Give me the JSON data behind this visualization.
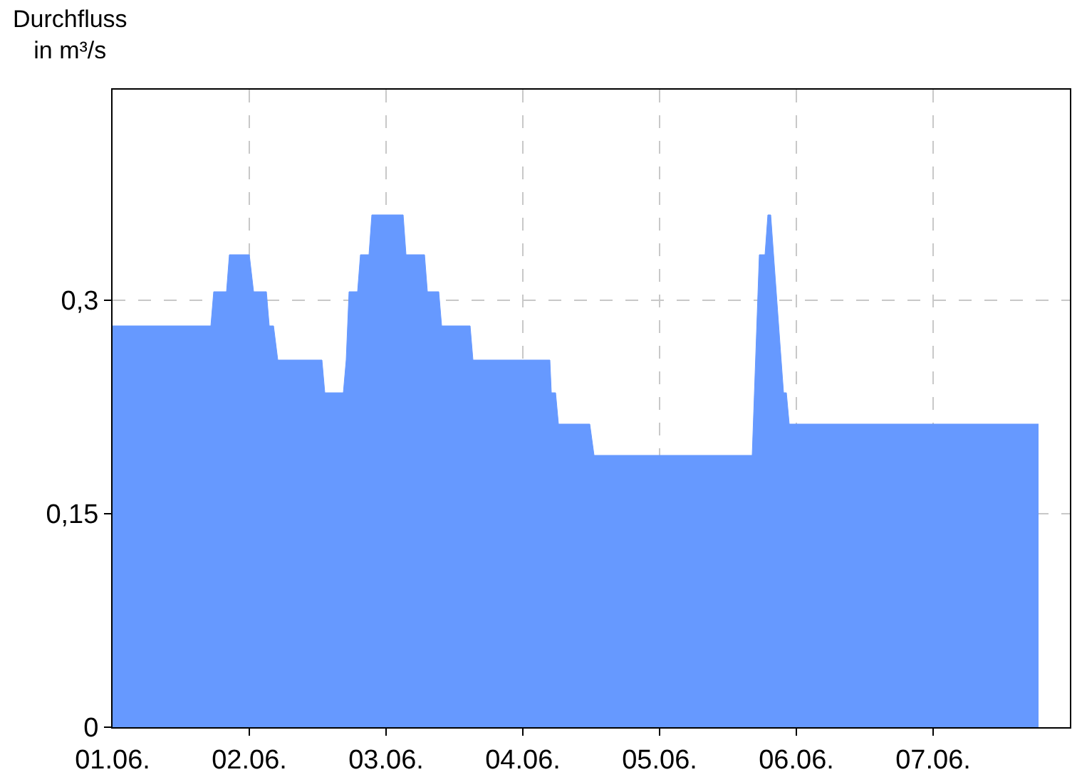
{
  "chart_data": {
    "type": "area",
    "ylabel": "Durchfluss\nin m³/s",
    "x": [
      "--06-01T00:00",
      "--06-01T17:15",
      "--06-01T17:45",
      "--06-01T20:00",
      "--06-01T20:30",
      "--06-02T00:00",
      "--06-02T00:45",
      "--06-02T03:00",
      "--06-02T03:30",
      "--06-02T04:15",
      "--06-02T05:00",
      "--06-02T12:45",
      "--06-02T13:15",
      "--06-02T16:30",
      "--06-02T17:00",
      "--06-02T17:30",
      "--06-02T18:00",
      "--06-02T19:00",
      "--06-02T19:30",
      "--06-02T21:00",
      "--06-02T21:30",
      "--06-03T03:00",
      "--06-03T03:30",
      "--06-03T06:45",
      "--06-03T07:15",
      "--06-03T09:15",
      "--06-03T09:45",
      "--06-03T14:45",
      "--06-03T15:15",
      "--06-04T04:45",
      "--06-04T05:00",
      "--06-04T05:45",
      "--06-04T06:15",
      "--06-04T11:45",
      "--06-04T12:30",
      "--06-05T16:15",
      "--06-05T17:30",
      "--06-05T18:30",
      "--06-05T19:00",
      "--06-05T19:30",
      "--06-05T20:00",
      "--06-05T21:45",
      "--06-05T22:15",
      "--06-05T22:45",
      "--06-07T18:30"
    ],
    "series": [
      {
        "color": "#6699ff",
        "values": [
          0.282,
          0.282,
          0.306,
          0.306,
          0.332,
          0.332,
          0.306,
          0.306,
          0.282,
          0.282,
          0.258,
          0.258,
          0.235,
          0.235,
          0.258,
          0.306,
          0.306,
          0.306,
          0.332,
          0.332,
          0.36,
          0.36,
          0.332,
          0.332,
          0.306,
          0.306,
          0.282,
          0.282,
          0.258,
          0.258,
          0.235,
          0.235,
          0.213,
          0.213,
          0.191,
          0.191,
          0.332,
          0.332,
          0.36,
          0.36,
          0.332,
          0.235,
          0.235,
          0.213,
          0.213
        ]
      }
    ],
    "xlim": [
      "--06-01T00:00",
      "--06-08T00:00"
    ],
    "xticks": [
      {
        "value": "--06-01T00:00",
        "label": "01.06."
      },
      {
        "value": "--06-02T00:00",
        "label": "02.06."
      },
      {
        "value": "--06-03T00:00",
        "label": "03.06."
      },
      {
        "value": "--06-04T00:00",
        "label": "04.06."
      },
      {
        "value": "--06-05T00:00",
        "label": "05.06."
      },
      {
        "value": "--06-06T00:00",
        "label": "06.06."
      },
      {
        "value": "--06-07T00:00",
        "label": "07.06."
      }
    ],
    "ylim": [
      0,
      0.448
    ],
    "yticks": [
      0,
      {
        "value": 0.15,
        "label": "0,15"
      },
      {
        "value": 0.3,
        "label": "0,3"
      }
    ],
    "grid": true
  }
}
